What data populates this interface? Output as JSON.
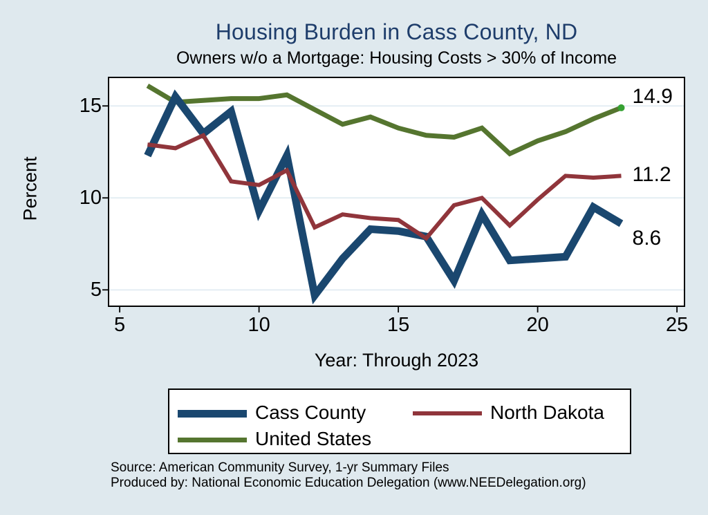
{
  "chart_data": {
    "type": "line",
    "title": "Housing Burden in Cass County, ND",
    "subtitle": "Owners w/o a Mortgage: Housing Costs > 30% of Income",
    "xlabel": "Year: Through 2023",
    "ylabel": "Percent",
    "x": [
      6,
      7,
      8,
      9,
      10,
      11,
      12,
      13,
      14,
      15,
      16,
      17,
      18,
      19,
      20,
      21,
      22,
      23
    ],
    "series": [
      {
        "name": "United States",
        "color": "#55752f",
        "stroke_width": 7,
        "values": [
          16.1,
          15.2,
          15.3,
          15.4,
          15.4,
          15.6,
          14.8,
          14.0,
          14.4,
          13.8,
          13.4,
          13.3,
          13.8,
          12.4,
          13.1,
          13.6,
          14.3,
          14.9
        ],
        "end_label": "14.9",
        "end_dot": true,
        "end_dot_color": "#35a132"
      },
      {
        "name": "Cass County",
        "color": "#1a476f",
        "stroke_width": 11,
        "values": [
          12.3,
          15.5,
          13.5,
          14.7,
          9.3,
          12.3,
          4.7,
          6.7,
          8.3,
          8.2,
          7.9,
          5.5,
          9.1,
          6.6,
          6.7,
          6.8,
          9.5,
          8.6
        ],
        "end_label": "8.6",
        "end_dot": false
      },
      {
        "name": "North Dakota",
        "color": "#90353b",
        "stroke_width": 6,
        "values": [
          12.9,
          12.7,
          13.4,
          10.9,
          10.7,
          11.5,
          8.4,
          9.1,
          8.9,
          8.8,
          7.8,
          9.6,
          10.0,
          8.5,
          9.9,
          11.2,
          11.1,
          11.2
        ],
        "end_label": "11.2",
        "end_dot": false
      }
    ],
    "x_ticks": [
      5,
      10,
      15,
      20,
      25
    ],
    "y_ticks": [
      5,
      10,
      15
    ],
    "xlim": [
      4.6,
      25.27
    ],
    "ylim": [
      4.11,
      16.55
    ],
    "grid": "horizontal",
    "legend_position": "bottom"
  },
  "legend": {
    "items": [
      {
        "label": "Cass County"
      },
      {
        "label": "North Dakota"
      },
      {
        "label": "United States"
      }
    ]
  },
  "footer": {
    "line1": "Source: American Community Survey, 1-yr Summary Files",
    "line2": "Produced by: National Economic Education Delegation (www.NEEDelegation.org)"
  },
  "colors": {
    "background": "#dfe9ee",
    "plot_background": "#ffffff",
    "gridline": "#e4edf3",
    "axis": "#000000",
    "title": "#1e3d6b"
  }
}
